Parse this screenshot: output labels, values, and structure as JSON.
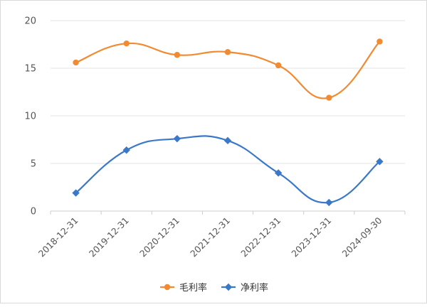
{
  "chart_data": {
    "type": "line",
    "smooth": true,
    "categories": [
      "2018-12-31",
      "2019-12-31",
      "2020-12-31",
      "2021-12-31",
      "2022-12-31",
      "2023-12-31",
      "2024-09-30"
    ],
    "series": [
      {
        "name": "毛利率",
        "color": "#f28a32",
        "marker": "circle",
        "values": [
          15.6,
          17.6,
          16.4,
          16.7,
          15.3,
          11.9,
          17.8
        ]
      },
      {
        "name": "净利率",
        "color": "#3a78c9",
        "marker": "diamond",
        "values": [
          1.9,
          6.4,
          7.6,
          7.4,
          4.0,
          0.9,
          5.2
        ]
      }
    ],
    "ylim": [
      0,
      20
    ],
    "yticks": [
      0,
      5,
      10,
      15,
      20
    ],
    "ytick_labels": [
      "0",
      "5",
      "10",
      "15",
      "20"
    ],
    "grid": true,
    "legend_position": "bottom-center",
    "title": "",
    "xlabel": "",
    "ylabel": ""
  }
}
